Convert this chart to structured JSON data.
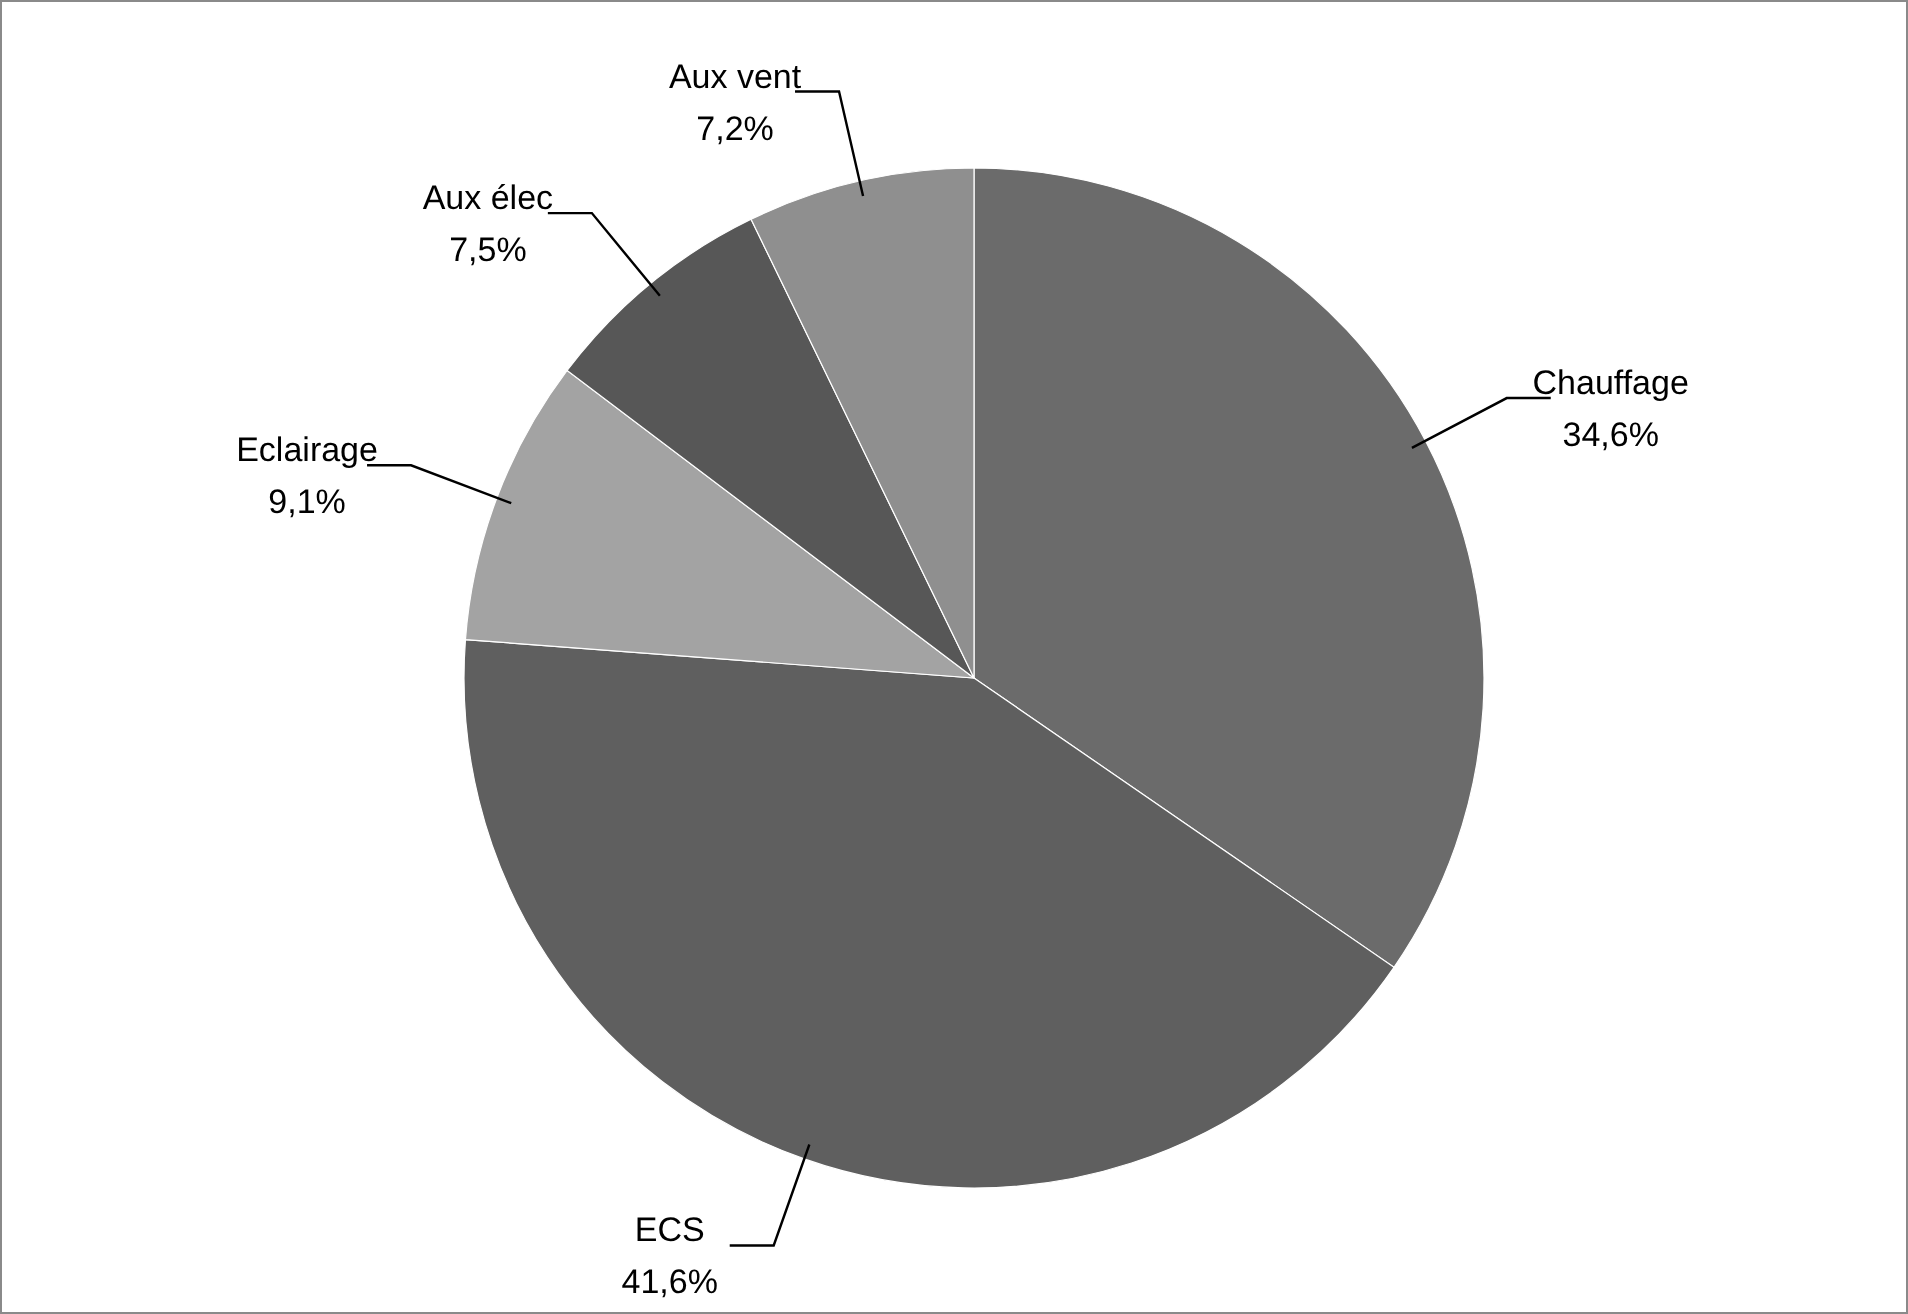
{
  "chart_data": {
    "type": "pie",
    "categories": [
      "Chauffage",
      "ECS",
      "Eclairage",
      "Aux élec",
      "Aux vent"
    ],
    "values": [
      34.6,
      41.6,
      9.1,
      7.5,
      7.2
    ],
    "colors": [
      "#6b6b6b",
      "#5f5f5f",
      "#a3a3a3",
      "#575757",
      "#8f8f8f"
    ],
    "value_labels": [
      "34,6%",
      "41,6%",
      "9,1%",
      "7,5%",
      "7,2%"
    ],
    "legend": false
  }
}
